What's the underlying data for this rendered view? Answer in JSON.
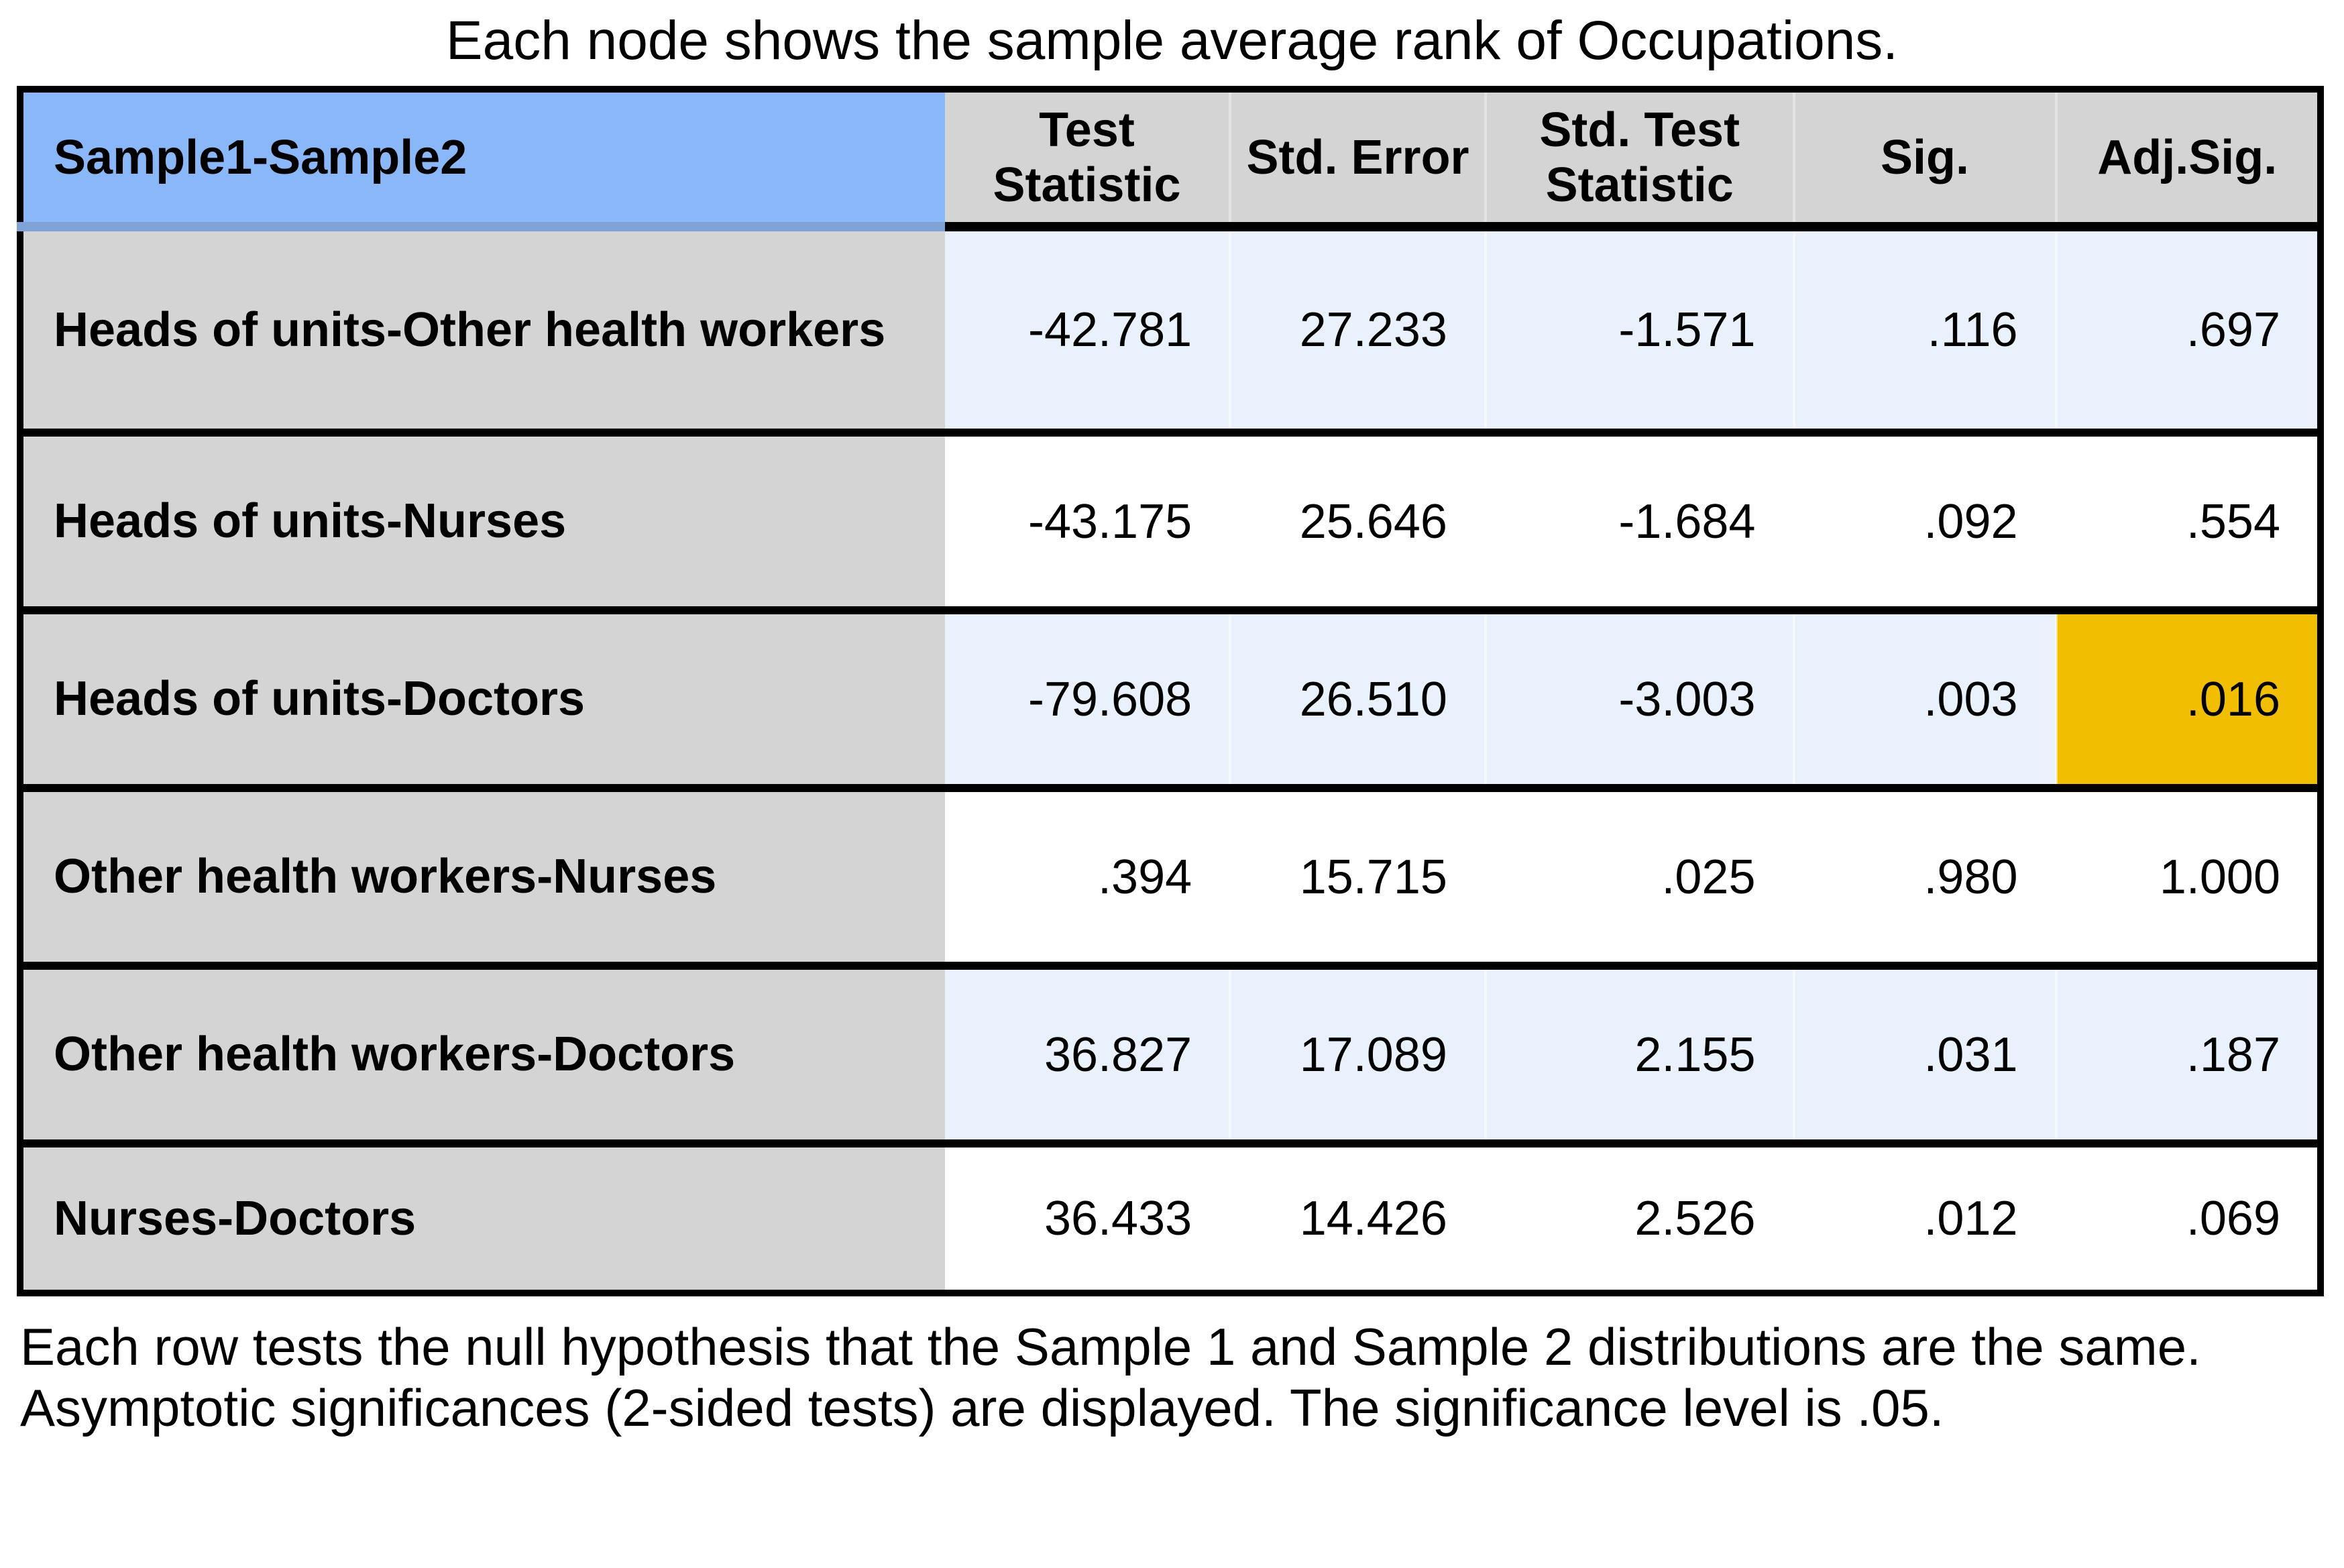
{
  "title": "Each node shows the sample average rank of Occupations.",
  "colors": {
    "header_label_bg": "#8AB7F7",
    "header_bg": "#D4D4D4",
    "row_label_bg": "#D4D4D4",
    "shaded_row_bg": "#E9F2FC",
    "plain_row_bg": "#FFFFFF",
    "significant_highlight_bg": "#F1BF00",
    "grid_line": "#000000"
  },
  "chart_data": {
    "type": "table",
    "title": "Each node shows the sample average rank of Occupations.",
    "row_header_label": "Sample1-Sample2",
    "columns": [
      "Test Statistic",
      "Std. Error",
      "Std. Test Statistic",
      "Sig.",
      "Adj.Sig."
    ],
    "rows": [
      {
        "label": "Heads of units-Other health workers",
        "values": [
          "-42.781",
          "27.233",
          "-1.571",
          ".116",
          ".697"
        ],
        "shaded": true,
        "highlighted_value_index": null
      },
      {
        "label": "Heads of units-Nurses",
        "values": [
          "-43.175",
          "25.646",
          "-1.684",
          ".092",
          ".554"
        ],
        "shaded": false,
        "highlighted_value_index": null
      },
      {
        "label": "Heads of units-Doctors",
        "values": [
          "-79.608",
          "26.510",
          "-3.003",
          ".003",
          ".016"
        ],
        "shaded": true,
        "highlighted_value_index": 4
      },
      {
        "label": "Other health workers-Nurses",
        "values": [
          ".394",
          "15.715",
          ".025",
          ".980",
          "1.000"
        ],
        "shaded": false,
        "highlighted_value_index": null
      },
      {
        "label": "Other health workers-Doctors",
        "values": [
          "36.827",
          "17.089",
          "2.155",
          ".031",
          ".187"
        ],
        "shaded": true,
        "highlighted_value_index": null
      },
      {
        "label": "Nurses-Doctors",
        "values": [
          "36.433",
          "14.426",
          "2.526",
          ".012",
          ".069"
        ],
        "shaded": false,
        "highlighted_value_index": null
      }
    ],
    "footnotes": [
      "Each row tests the null hypothesis that the Sample 1 and Sample 2 distributions are the same.",
      "Asymptotic significances (2-sided tests) are displayed. The significance level is .05."
    ],
    "significance_level": ".05",
    "layout": {
      "grid": true,
      "legend": "none"
    }
  }
}
